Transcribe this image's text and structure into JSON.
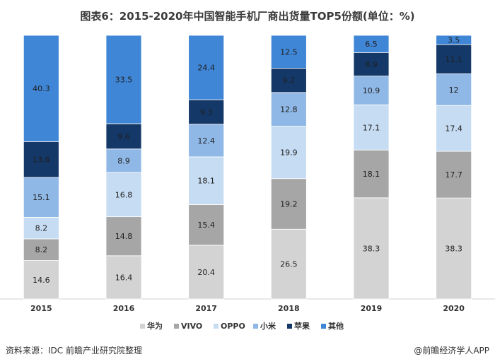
{
  "chart_data": {
    "type": "bar",
    "stacked": true,
    "title": "图表6：2015-2020年中国智能手机厂商出货量TOP5份额(单位：%)",
    "categories": [
      "2015",
      "2016",
      "2017",
      "2018",
      "2019",
      "2020"
    ],
    "series": [
      {
        "name": "华为",
        "color": "#d3d3d3",
        "values": [
          14.6,
          16.4,
          20.4,
          26.5,
          38.3,
          38.3
        ]
      },
      {
        "name": "VIVO",
        "color": "#a6a6a6",
        "values": [
          8.2,
          14.8,
          15.4,
          19.2,
          18.1,
          17.7
        ]
      },
      {
        "name": "OPPO",
        "color": "#c6dcf2",
        "values": [
          8.2,
          16.8,
          18.1,
          19.9,
          17.1,
          17.4
        ]
      },
      {
        "name": "小米",
        "color": "#8fb8e6",
        "values": [
          15.1,
          8.9,
          12.4,
          12.8,
          10.9,
          12
        ]
      },
      {
        "name": "苹果",
        "color": "#143868",
        "values": [
          13.6,
          9.6,
          9.3,
          9.2,
          8.9,
          11.1
        ]
      },
      {
        "name": "其他",
        "color": "#3f86d6",
        "values": [
          40.3,
          33.5,
          24.4,
          12.5,
          6.5,
          3.5
        ]
      }
    ],
    "legend": "bottom",
    "grid": false
  },
  "footer": {
    "source": "资料来源：IDC 前瞻产业研究院整理",
    "credit": "@前瞻经济学人APP"
  }
}
